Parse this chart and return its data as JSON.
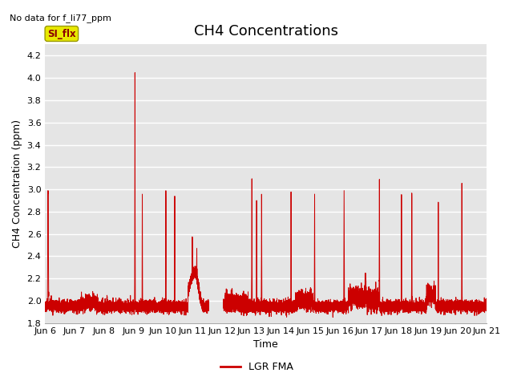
{
  "title": "CH4 Concentrations",
  "ylabel": "CH4 Concentration (ppm)",
  "xlabel": "Time",
  "top_left_text": "No data for f_li77_ppm",
  "legend_label": "LGR FMA",
  "legend_color": "#cc0000",
  "line_color": "#cc0000",
  "background_color": "#e5e5e5",
  "ylim": [
    1.8,
    4.3
  ],
  "yticks": [
    1.8,
    2.0,
    2.2,
    2.4,
    2.6,
    2.8,
    3.0,
    3.2,
    3.4,
    3.6,
    3.8,
    4.0,
    4.2
  ],
  "xlim_start": 0,
  "xlim_end": 15,
  "xtick_labels": [
    "Jun 6",
    "Jun 7",
    "Jun 8",
    "Jun 9",
    "Jun 10",
    "Jun 11",
    "Jun 12",
    "Jun 13",
    "Jun 14",
    "Jun 15",
    "Jun 16",
    "Jun 17",
    "Jun 18",
    "Jun 19",
    "Jun 20",
    "Jun 21"
  ],
  "si_flx_label": "SI_flx",
  "title_fontsize": 13,
  "label_fontsize": 9,
  "tick_fontsize": 8
}
